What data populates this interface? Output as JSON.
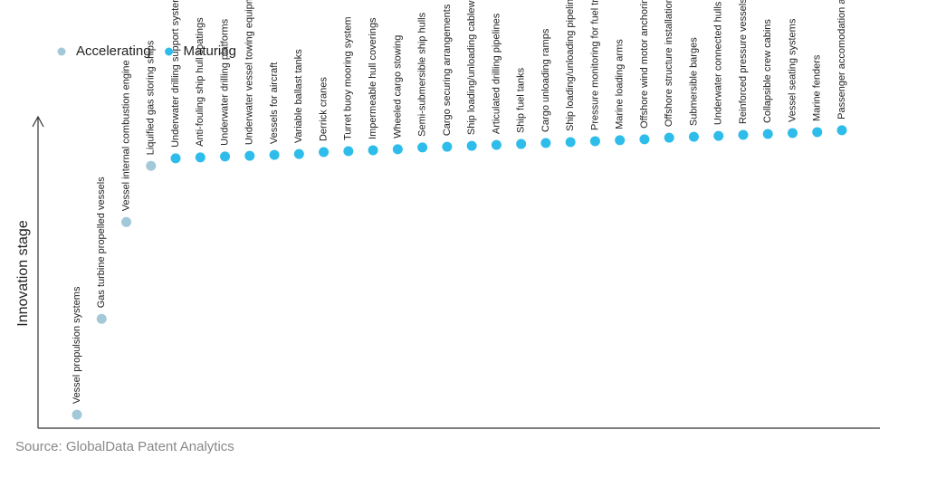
{
  "chart_data": {
    "type": "scatter",
    "y_label": "Innovation stage",
    "source": "Source: GlobalData Patent Analytics",
    "legend": "top-left",
    "ylim": [
      0,
      100
    ],
    "categories": [
      "Vessel propulsion systems",
      "Gas turbine propelled vessels",
      "Vessel internal combustion engine",
      "Liquified gas storing ships",
      "Underwater drilling support systems",
      "Anti-fouling ship hull coatings",
      "Underwater drilling platforms",
      "Underwater vessel towing equipment",
      "Vessels for aircraft",
      "Variable ballast tanks",
      "Derrick cranes",
      "Turret buoy mooring system",
      "Impermeable hull coverings",
      "Wheeled cargo stowing",
      "Semi-submersible ship hulls",
      "Cargo securing arrangements",
      "Ship loading/unloading cableways",
      "Articulated drilling pipelines",
      "Ship fuel tanks",
      "Cargo unloading ramps",
      "Ship loading/unloading pipelines",
      "Pressure monitoring for fuel transferring vessels",
      "Marine loading arms",
      "Offshore wind motor anchoring",
      "Offshore structure installation",
      "Submersible barges",
      "Underwater connected hulls",
      "Reinforced pressure vessels",
      "Collapsible crew cabins",
      "Vessel seating systems",
      "Marine fenders",
      "Passenger accomodation arrangements"
    ],
    "series": [
      {
        "name": "Accelerating",
        "color": "#a3c9d9",
        "values": [
          4.3,
          35,
          66,
          84,
          null,
          null,
          null,
          null,
          null,
          null,
          null,
          null,
          null,
          null,
          null,
          null,
          null,
          null,
          null,
          null,
          null,
          null,
          null,
          null,
          null,
          null,
          null,
          null,
          null,
          null,
          null,
          null
        ]
      },
      {
        "name": "Maturing",
        "color": "#2ebdea",
        "values": [
          null,
          null,
          null,
          null,
          86.4,
          86.7,
          87,
          87.2,
          87.5,
          87.8,
          88.4,
          88.7,
          89,
          89.3,
          89.9,
          90.1,
          90.4,
          90.7,
          91,
          91.3,
          91.6,
          91.9,
          92.2,
          92.5,
          93,
          93.3,
          93.6,
          93.9,
          94.2,
          94.5,
          94.8,
          95.4
        ]
      }
    ]
  }
}
